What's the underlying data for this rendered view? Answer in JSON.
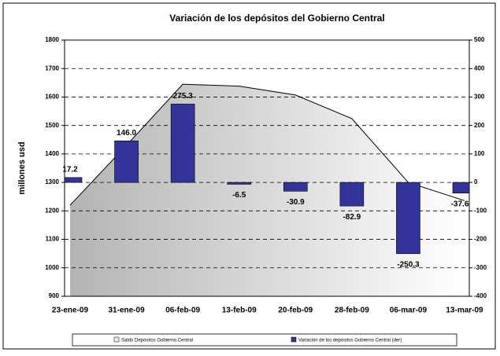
{
  "chart_data": {
    "type": "bar_area",
    "title": "Variación de los depósitos del Gobierno Central",
    "y_label": "millones usd",
    "categories": [
      "23-ene-09",
      "31-ene-09",
      "06-feb-09",
      "13-feb-09",
      "20-feb-09",
      "28-feb-09",
      "06-mar-09",
      "13-mar-09"
    ],
    "series": [
      {
        "name": "Saldo Depósitos Gobierno Central",
        "type": "area",
        "color": "#b4b4b4",
        "values": [
          1220,
          1430,
          1645,
          1638,
          1607,
          1524,
          1300,
          1236
        ]
      },
      {
        "name": "Variación de los depósitos Gobierno Central (der)",
        "type": "bar",
        "axis": "y2",
        "color": "#333399",
        "values": [
          17.2,
          146.0,
          275.3,
          -6.5,
          -30.9,
          -82.9,
          -250.3,
          -37.6
        ],
        "value_labels": [
          "17.2",
          "146.0",
          "275.3",
          "-6.5",
          "-30.9",
          "-82.9",
          "-250.3",
          "-37.6"
        ]
      }
    ],
    "ylim": [
      900,
      1800
    ],
    "yticks": [
      900,
      1000,
      1100,
      1200,
      1300,
      1400,
      1500,
      1600,
      1700,
      1800
    ],
    "y2lim": [
      -400,
      500
    ],
    "y2ticks": [
      -400,
      -300,
      -200,
      -100,
      0,
      100,
      200,
      300,
      400,
      500
    ],
    "grid": true,
    "legend": "bottom"
  }
}
